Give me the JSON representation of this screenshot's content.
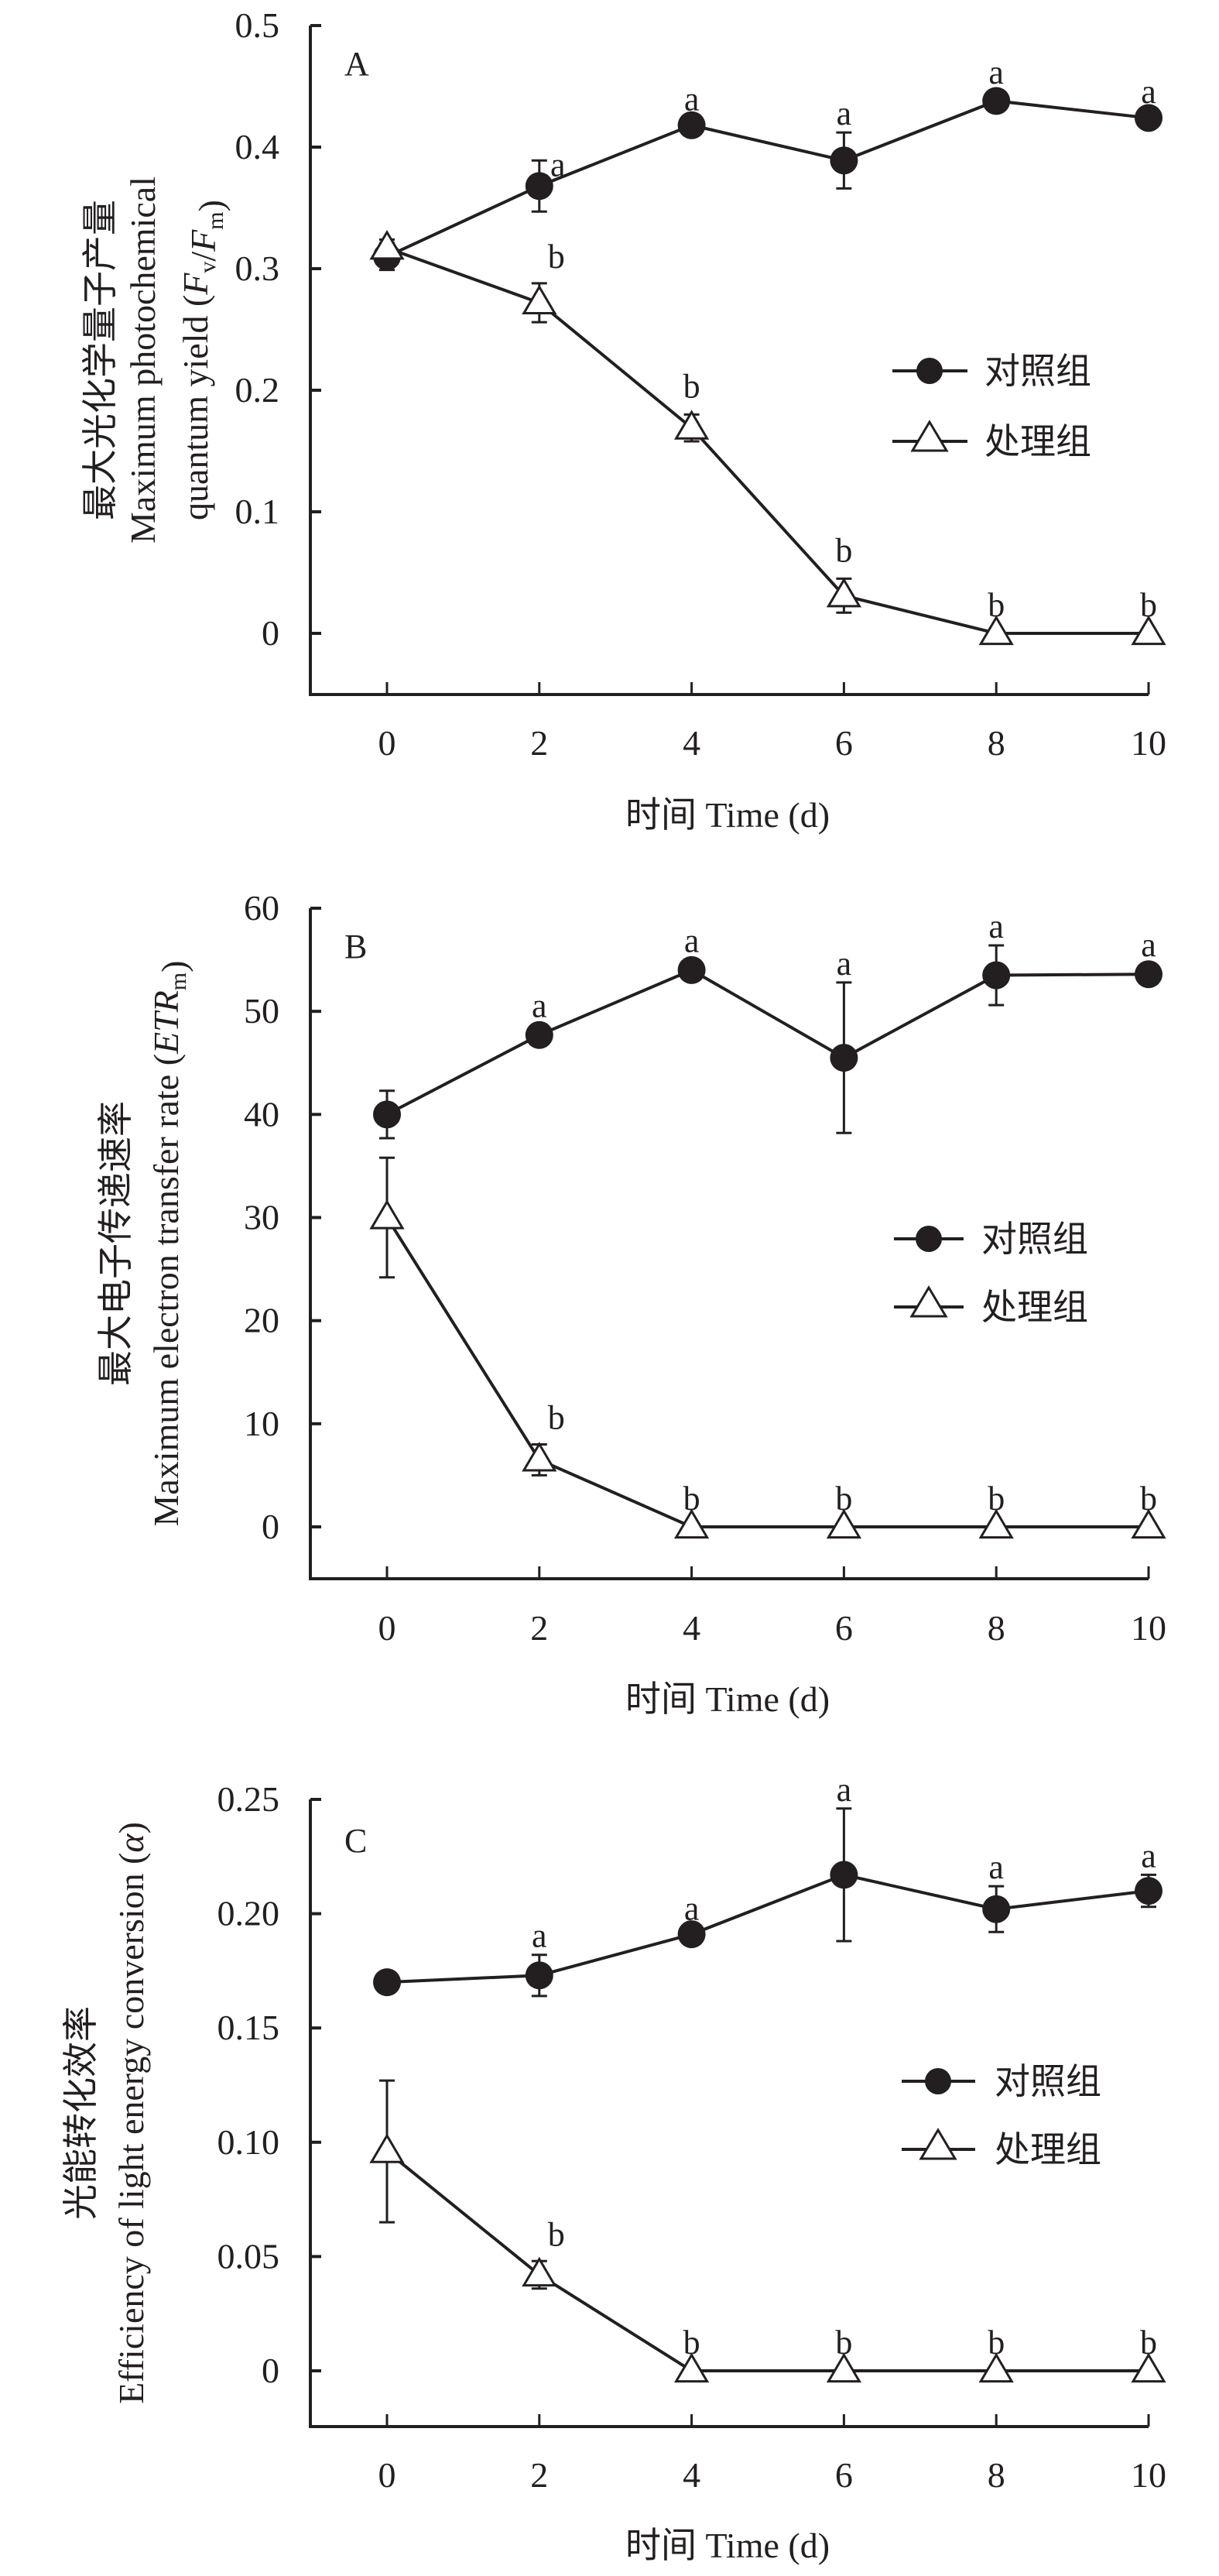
{
  "chart_data": [
    {
      "type": "line",
      "panel": "A",
      "xlabel": "时间 Time (d)",
      "ylabel_lines": [
        "最大光化学量子产量",
        "Maximum photochemical",
        "quantum yield (Fv/Fm)"
      ],
      "ylabel_math": {
        "pre": "quantum yield (",
        "v1": "F",
        "s1": "v",
        "mid": "/",
        "v2": "F",
        "s2": "m",
        "post": ")"
      },
      "x": [
        0,
        2,
        4,
        6,
        8,
        10
      ],
      "xticks": [
        "0",
        "2",
        "4",
        "6",
        "8",
        "10"
      ],
      "xlim": [
        -1,
        10
      ],
      "ylim": [
        -0.05,
        0.5
      ],
      "yticks": [
        0,
        0.1,
        0.2,
        0.3,
        0.4,
        0.5
      ],
      "ytick_labels": [
        "0",
        "0.1",
        "0.2",
        "0.3",
        "0.4",
        "0.5"
      ],
      "legend_position": "right-middle",
      "grid": false,
      "series": [
        {
          "name": "对照组",
          "marker": "filled-circle",
          "values": [
            0.31,
            0.368,
            0.418,
            0.389,
            0.438,
            0.424
          ],
          "errors": [
            0.011,
            0.021,
            0.006,
            0.023,
            0.008,
            0.006
          ],
          "labels": [
            "",
            "a",
            "a",
            "a",
            "a",
            "a"
          ]
        },
        {
          "name": "处理组",
          "marker": "open-triangle",
          "values": [
            0.317,
            0.272,
            0.169,
            0.031,
            0,
            0
          ],
          "errors": [
            0.007,
            0.016,
            0.011,
            0.014,
            0,
            0
          ],
          "labels": [
            "",
            "b",
            "b",
            "b",
            "b",
            "b"
          ]
        }
      ]
    },
    {
      "type": "line",
      "panel": "B",
      "xlabel": "时间 Time (d)",
      "ylabel_lines": [
        "最大电子传递速率",
        "Maximum electron transfer rate (ETRm)"
      ],
      "ylabel_math": {
        "pre": "Maximum electron transfer rate (",
        "v1": "ETR",
        "s1": "m",
        "post": ")"
      },
      "x": [
        0,
        2,
        4,
        6,
        8,
        10
      ],
      "xticks": [
        "0",
        "2",
        "4",
        "6",
        "8",
        "10"
      ],
      "xlim": [
        -1,
        10
      ],
      "ylim": [
        -5,
        60
      ],
      "yticks": [
        0,
        10,
        20,
        30,
        40,
        50,
        60
      ],
      "ytick_labels": [
        "0",
        "10",
        "20",
        "30",
        "40",
        "50",
        "60"
      ],
      "legend_position": "right-middle",
      "grid": false,
      "series": [
        {
          "name": "对照组",
          "marker": "filled-circle",
          "values": [
            40.0,
            47.7,
            54.0,
            45.5,
            53.5,
            53.6
          ],
          "errors": [
            2.3,
            1.0,
            1.0,
            7.3,
            2.9,
            1.0
          ],
          "labels": [
            "",
            "a",
            "a",
            "a",
            "a",
            "a"
          ]
        },
        {
          "name": "处理组",
          "marker": "open-triangle",
          "values": [
            30.0,
            6.5,
            0,
            0,
            0,
            0
          ],
          "errors": [
            5.8,
            1.5,
            0,
            0,
            0,
            0
          ],
          "labels": [
            "",
            "b",
            "b",
            "b",
            "b",
            "b"
          ]
        }
      ]
    },
    {
      "type": "line",
      "panel": "C",
      "xlabel": "时间 Time (d)",
      "ylabel_lines": [
        "光能转化效率",
        "Efficiency of light energy conversion (α)"
      ],
      "ylabel_math": {
        "pre": "Efficiency of light energy conversion (",
        "v1": "α",
        "post": ")"
      },
      "x": [
        0,
        2,
        4,
        6,
        8,
        10
      ],
      "xticks": [
        "0",
        "2",
        "4",
        "6",
        "8",
        "10"
      ],
      "xlim": [
        -1,
        10
      ],
      "ylim": [
        -0.025,
        0.25
      ],
      "yticks": [
        0,
        0.05,
        0.1,
        0.15,
        0.2,
        0.25
      ],
      "ytick_labels": [
        "0",
        "0.05",
        "0.10",
        "0.15",
        "0.20",
        "0.25"
      ],
      "legend_position": "right-middle",
      "grid": false,
      "series": [
        {
          "name": "对照组",
          "marker": "filled-circle",
          "values": [
            0.17,
            0.173,
            0.191,
            0.217,
            0.202,
            0.21
          ],
          "errors": [
            0.004,
            0.009,
            0.003,
            0.029,
            0.01,
            0.007
          ],
          "labels": [
            "",
            "a",
            "a",
            "a",
            "a",
            "a"
          ]
        },
        {
          "name": "处理组",
          "marker": "open-triangle",
          "values": [
            0.096,
            0.042,
            0,
            0,
            0,
            0
          ],
          "errors": [
            0.031,
            0.006,
            0,
            0,
            0,
            0
          ],
          "labels": [
            "",
            "b",
            "b",
            "b",
            "b",
            "b"
          ]
        }
      ]
    }
  ],
  "colors": {
    "ink": "#231f20",
    "background": "#ffffff"
  }
}
